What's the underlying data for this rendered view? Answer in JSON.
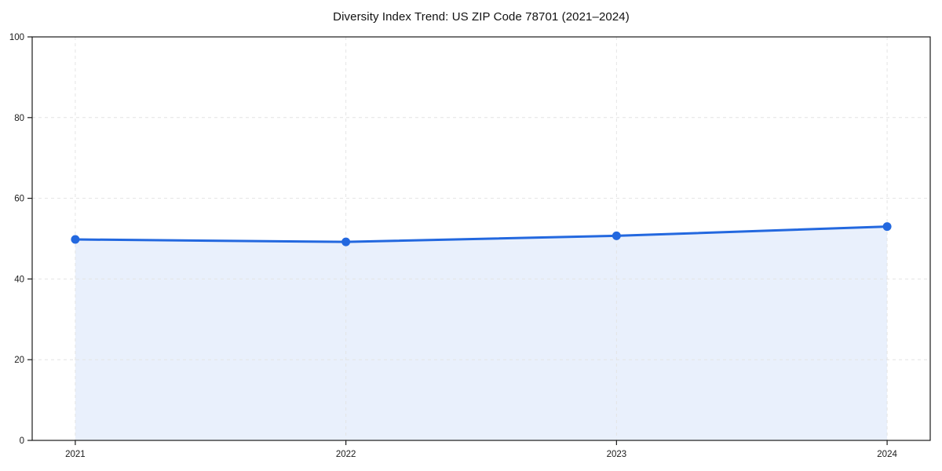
{
  "chart": {
    "title": "Diversity Index Trend: US ZIP Code 78701 (2021–2024)"
  },
  "chart_data": {
    "type": "area",
    "title": "Diversity Index Trend: US ZIP Code 78701 (2021–2024)",
    "categories": [
      "2021",
      "2022",
      "2023",
      "2024"
    ],
    "series": [
      {
        "name": "Diversity Index",
        "values": [
          49.8,
          49.2,
          50.7,
          53.0
        ]
      }
    ],
    "xlabel": "",
    "ylabel": "",
    "ylim": [
      0,
      100
    ],
    "yticks": [
      0,
      20,
      40,
      60,
      80,
      100
    ],
    "grid": true,
    "legend": "none",
    "line_color": "#2368DF",
    "fill_color": "#E9F0FC",
    "grid_color": "#E4E4E4",
    "axis_color": "#1a1a1a",
    "marker": "circle"
  }
}
